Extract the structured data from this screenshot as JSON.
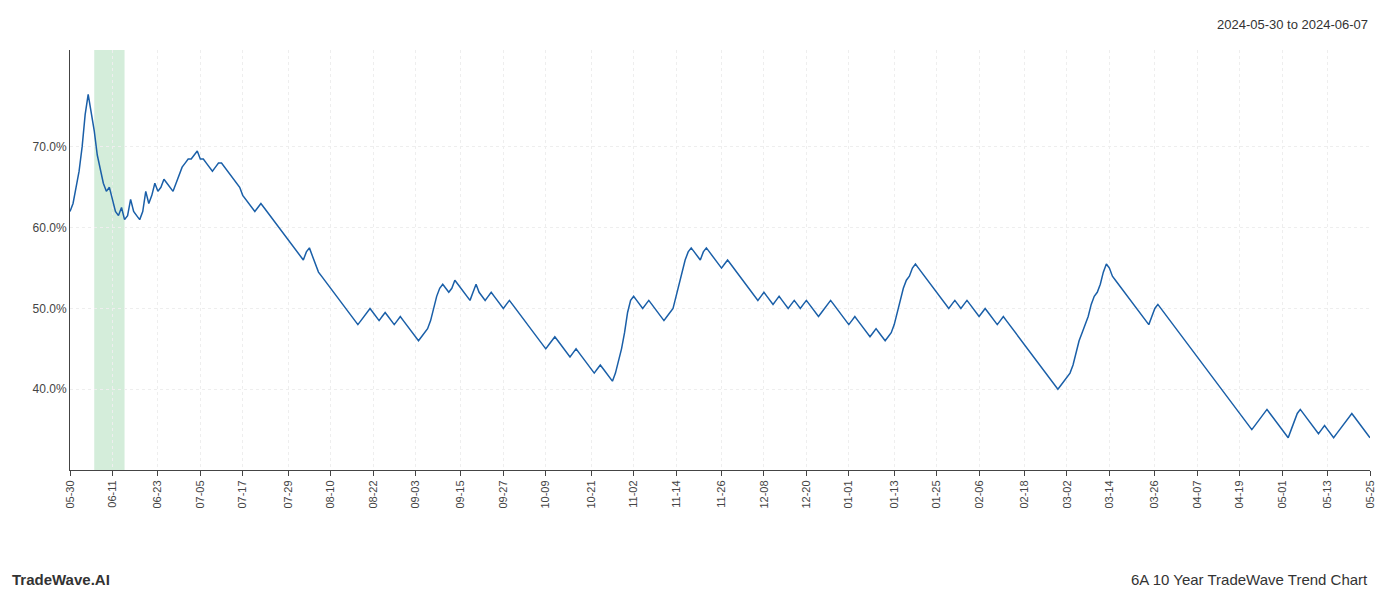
{
  "chart_data": {
    "type": "line",
    "title": "6A 10 Year TradeWave Trend Chart",
    "subtitle": "2024-05-30 to 2024-06-07",
    "annotations": [
      "TradeWave.AI"
    ],
    "color": "#1a5fa8",
    "grid": true,
    "ylim": [
      30,
      82
    ],
    "yticks": [
      {
        "value": 40.0,
        "label": "40.0%"
      },
      {
        "value": 50.0,
        "label": "50.0%"
      },
      {
        "value": 60.0,
        "label": "60.0%"
      },
      {
        "value": 70.0,
        "label": "70.0%"
      }
    ],
    "highlight": {
      "start": 8,
      "end": 18,
      "color": "#d4edda"
    },
    "categories": [
      "05-30",
      null,
      null,
      null,
      null,
      null,
      null,
      null,
      null,
      null,
      null,
      null,
      null,
      null,
      "06-11",
      null,
      null,
      null,
      null,
      null,
      null,
      null,
      null,
      null,
      null,
      null,
      null,
      null,
      null,
      "06-23",
      null,
      null,
      null,
      null,
      null,
      null,
      null,
      null,
      null,
      null,
      null,
      null,
      null,
      "07-05",
      null,
      null,
      null,
      null,
      null,
      null,
      null,
      null,
      null,
      null,
      null,
      null,
      null,
      "07-17",
      null,
      null,
      null,
      null,
      null,
      null,
      null,
      null,
      null,
      null,
      null,
      null,
      null,
      null,
      "07-29",
      null,
      null,
      null,
      null,
      null,
      null,
      null,
      null,
      null,
      null,
      null,
      null,
      null,
      "08-10",
      null,
      null,
      null,
      null,
      null,
      null,
      null,
      null,
      null,
      null,
      null,
      null,
      null,
      "08-22",
      null,
      null,
      null,
      null,
      null,
      null,
      null,
      null,
      null,
      null,
      null,
      null,
      null,
      "09-03",
      null,
      null,
      null,
      null,
      null,
      null,
      null,
      null,
      null,
      null,
      null,
      null,
      null,
      null,
      "09-15",
      null,
      null,
      null,
      null,
      null,
      null,
      null,
      null,
      null,
      null,
      null,
      null,
      null,
      "09-27",
      null,
      null,
      null,
      null,
      null,
      null,
      null,
      null,
      null,
      null,
      null,
      null,
      null,
      "10-09",
      null,
      null,
      null,
      null,
      null,
      null,
      null,
      null,
      null,
      null,
      null,
      null,
      null,
      null,
      "10-21",
      null,
      null,
      null,
      null,
      null,
      null,
      null,
      null,
      null,
      null,
      null,
      null,
      null,
      "11-02",
      null,
      null,
      null,
      null,
      null,
      null,
      null,
      null,
      null,
      null,
      null,
      null,
      null,
      "11-14",
      null,
      null,
      null,
      null,
      null,
      null,
      null,
      null,
      null,
      null,
      null,
      null,
      null,
      null,
      "11-26",
      null,
      null,
      null,
      null,
      null,
      null,
      null,
      null,
      null,
      null,
      null,
      null,
      null,
      "12-08",
      null,
      null,
      null,
      null,
      null,
      null,
      null,
      null,
      null,
      null,
      null,
      null,
      null,
      "12-20",
      null,
      null,
      null,
      null,
      null,
      null,
      null,
      null,
      null,
      null,
      null,
      null,
      null,
      "01-01",
      null,
      null,
      null,
      null,
      null,
      null,
      null,
      null,
      null,
      null,
      null,
      null,
      null,
      null,
      "01-13",
      null,
      null,
      null,
      null,
      null,
      null,
      null,
      null,
      null,
      null,
      null,
      null,
      null,
      "01-25",
      null,
      null,
      null,
      null,
      null,
      null,
      null,
      null,
      null,
      null,
      null,
      null,
      null,
      "02-06",
      null,
      null,
      null,
      null,
      null,
      null,
      null,
      null,
      null,
      null,
      null,
      null,
      null,
      null,
      "02-18",
      null,
      null,
      null,
      null,
      null,
      null,
      null,
      null,
      null,
      null,
      null,
      null,
      null,
      "03-02",
      null,
      null,
      null,
      null,
      null,
      null,
      null,
      null,
      null,
      null,
      null,
      null,
      null,
      "03-14",
      null,
      null,
      null,
      null,
      null,
      null,
      null,
      null,
      null,
      null,
      null,
      null,
      null,
      null,
      "03-26",
      null,
      null,
      null,
      null,
      null,
      null,
      null,
      null,
      null,
      null,
      null,
      null,
      null,
      "04-07",
      null,
      null,
      null,
      null,
      null,
      null,
      null,
      null,
      null,
      null,
      null,
      null,
      null,
      "04-19",
      null,
      null,
      null,
      null,
      null,
      null,
      null,
      null,
      null,
      null,
      null,
      null,
      null,
      "05-01",
      null,
      null,
      null,
      null,
      null,
      null,
      null,
      null,
      null,
      null,
      null,
      null,
      null,
      null,
      "05-13",
      null,
      null,
      null,
      null,
      null,
      null,
      null,
      null,
      null,
      null,
      null,
      null,
      null,
      "05-25"
    ],
    "values": [
      62.0,
      63.0,
      65.0,
      67.0,
      70.0,
      74.0,
      76.5,
      74.5,
      72.0,
      69.0,
      67.0,
      65.5,
      64.5,
      65.0,
      63.5,
      62.0,
      61.5,
      62.5,
      61.0,
      61.5,
      63.5,
      62.0,
      61.5,
      61.0,
      62.0,
      64.5,
      63.0,
      64.0,
      65.5,
      64.5,
      65.0,
      66.0,
      65.5,
      65.0,
      64.5,
      65.5,
      66.5,
      67.5,
      68.0,
      68.5,
      68.5,
      69.0,
      69.5,
      68.5,
      68.5,
      68.0,
      67.5,
      67.0,
      67.5,
      68.0,
      68.0,
      67.5,
      67.0,
      66.5,
      66.0,
      65.5,
      65.0,
      64.0,
      63.5,
      63.0,
      62.5,
      62.0,
      62.5,
      63.0,
      62.5,
      62.0,
      61.5,
      61.0,
      60.5,
      60.0,
      59.5,
      59.0,
      58.5,
      58.0,
      57.5,
      57.0,
      56.5,
      56.0,
      57.0,
      57.5,
      56.5,
      55.5,
      54.5,
      54.0,
      53.5,
      53.0,
      52.5,
      52.0,
      51.5,
      51.0,
      50.5,
      50.0,
      49.5,
      49.0,
      48.5,
      48.0,
      48.5,
      49.0,
      49.5,
      50.0,
      49.5,
      49.0,
      48.5,
      49.0,
      49.5,
      49.0,
      48.5,
      48.0,
      48.5,
      49.0,
      48.5,
      48.0,
      47.5,
      47.0,
      46.5,
      46.0,
      46.5,
      47.0,
      47.5,
      48.5,
      50.0,
      51.5,
      52.5,
      53.0,
      52.5,
      52.0,
      52.5,
      53.5,
      53.0,
      52.5,
      52.0,
      51.5,
      51.0,
      52.0,
      53.0,
      52.0,
      51.5,
      51.0,
      51.5,
      52.0,
      51.5,
      51.0,
      50.5,
      50.0,
      50.5,
      51.0,
      50.5,
      50.0,
      49.5,
      49.0,
      48.5,
      48.0,
      47.5,
      47.0,
      46.5,
      46.0,
      45.5,
      45.0,
      45.5,
      46.0,
      46.5,
      46.0,
      45.5,
      45.0,
      44.5,
      44.0,
      44.5,
      45.0,
      44.5,
      44.0,
      43.5,
      43.0,
      42.5,
      42.0,
      42.5,
      43.0,
      42.5,
      42.0,
      41.5,
      41.0,
      42.0,
      43.5,
      45.0,
      47.0,
      49.5,
      51.0,
      51.5,
      51.0,
      50.5,
      50.0,
      50.5,
      51.0,
      50.5,
      50.0,
      49.5,
      49.0,
      48.5,
      49.0,
      49.5,
      50.0,
      51.5,
      53.0,
      54.5,
      56.0,
      57.0,
      57.5,
      57.0,
      56.5,
      56.0,
      57.0,
      57.5,
      57.0,
      56.5,
      56.0,
      55.5,
      55.0,
      55.5,
      56.0,
      55.5,
      55.0,
      54.5,
      54.0,
      53.5,
      53.0,
      52.5,
      52.0,
      51.5,
      51.0,
      51.5,
      52.0,
      51.5,
      51.0,
      50.5,
      51.0,
      51.5,
      51.0,
      50.5,
      50.0,
      50.5,
      51.0,
      50.5,
      50.0,
      50.5,
      51.0,
      50.5,
      50.0,
      49.5,
      49.0,
      49.5,
      50.0,
      50.5,
      51.0,
      50.5,
      50.0,
      49.5,
      49.0,
      48.5,
      48.0,
      48.5,
      49.0,
      48.5,
      48.0,
      47.5,
      47.0,
      46.5,
      47.0,
      47.5,
      47.0,
      46.5,
      46.0,
      46.5,
      47.0,
      48.0,
      49.5,
      51.0,
      52.5,
      53.5,
      54.0,
      55.0,
      55.5,
      55.0,
      54.5,
      54.0,
      53.5,
      53.0,
      52.5,
      52.0,
      51.5,
      51.0,
      50.5,
      50.0,
      50.5,
      51.0,
      50.5,
      50.0,
      50.5,
      51.0,
      50.5,
      50.0,
      49.5,
      49.0,
      49.5,
      50.0,
      49.5,
      49.0,
      48.5,
      48.0,
      48.5,
      49.0,
      48.5,
      48.0,
      47.5,
      47.0,
      46.5,
      46.0,
      45.5,
      45.0,
      44.5,
      44.0,
      43.5,
      43.0,
      42.5,
      42.0,
      41.5,
      41.0,
      40.5,
      40.0,
      40.5,
      41.0,
      41.5,
      42.0,
      43.0,
      44.5,
      46.0,
      47.0,
      48.0,
      49.0,
      50.5,
      51.5,
      52.0,
      53.0,
      54.5,
      55.5,
      55.0,
      54.0,
      53.5,
      53.0,
      52.5,
      52.0,
      51.5,
      51.0,
      50.5,
      50.0,
      49.5,
      49.0,
      48.5,
      48.0,
      49.0,
      50.0,
      50.5,
      50.0,
      49.5,
      49.0,
      48.5,
      48.0,
      47.5,
      47.0,
      46.5,
      46.0,
      45.5,
      45.0,
      44.5,
      44.0,
      43.5,
      43.0,
      42.5,
      42.0,
      41.5,
      41.0,
      40.5,
      40.0,
      39.5,
      39.0,
      38.5,
      38.0,
      37.5,
      37.0,
      36.5,
      36.0,
      35.5,
      35.0,
      35.5,
      36.0,
      36.5,
      37.0,
      37.5,
      37.0,
      36.5,
      36.0,
      35.5,
      35.0,
      34.5,
      34.0,
      35.0,
      36.0,
      37.0,
      37.5,
      37.0,
      36.5,
      36.0,
      35.5,
      35.0,
      34.5,
      35.0,
      35.5,
      35.0,
      34.5,
      34.0,
      34.5,
      35.0,
      35.5,
      36.0,
      36.5,
      37.0,
      36.5,
      36.0,
      35.5,
      35.0,
      34.5,
      34.0
    ]
  }
}
